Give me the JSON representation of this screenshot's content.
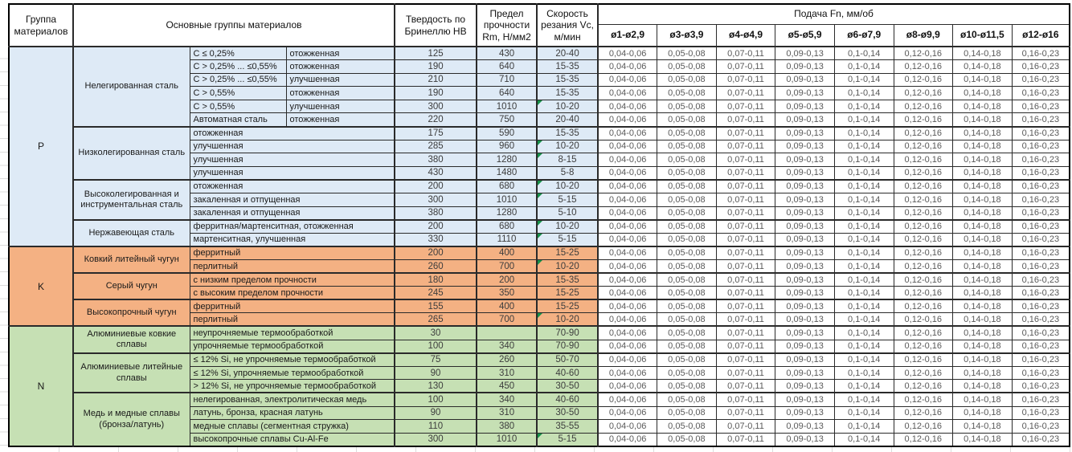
{
  "colors": {
    "group_p": "#DEEAF6",
    "group_k": "#F4B183",
    "group_n": "#C6E0B4",
    "flag_green": "#169149"
  },
  "table": {
    "headers": {
      "group": "Группа материалов",
      "main_groups": "Основные группы материалов",
      "hardness": "Твердость по Бринеллю HB",
      "strength": "Предел прочности Rm, Н/мм2",
      "speed": "Скорость резания Vc, м/мин",
      "feed": "Подача Fn, мм/об",
      "diameters": [
        "ø1-ø2,9",
        "ø3-ø3,9",
        "ø4-ø4,9",
        "ø5-ø5,9",
        "ø6-ø7,9",
        "ø8-ø9,9",
        "ø10-ø11,5",
        "ø12-ø16"
      ]
    },
    "feed_values": [
      "0,04-0,06",
      "0,05-0,08",
      "0,07-0,11",
      "0,09-0,13",
      "0,1-0,14",
      "0,12-0,16",
      "0,14-0,18",
      "0,16-0,23"
    ],
    "groups": [
      {
        "code": "P",
        "color": "#DEEAF6",
        "subgroups": [
          {
            "name": "Нелегированная сталь",
            "rows": [
              {
                "c1": "C ≤ 0,25%",
                "c2": "отожженная",
                "hb": "125",
                "rm": "430",
                "vc": "20-40"
              },
              {
                "c1": "C > 0,25% ... ≤0,55%",
                "c2": "отожженная",
                "hb": "190",
                "rm": "640",
                "vc": "15-35"
              },
              {
                "c1": "C > 0,25% ... ≤0,55%",
                "c2": "улучшенная",
                "hb": "210",
                "rm": "710",
                "vc": "15-35"
              },
              {
                "c1": "C > 0,55%",
                "c2": "отожженная",
                "hb": "190",
                "rm": "640",
                "vc": "15-35"
              },
              {
                "c1": "C > 0,55%",
                "c2": "улучшенная",
                "hb": "300",
                "rm": "1010",
                "vc": "10-20",
                "flag": true
              },
              {
                "c1": "Автоматная сталь",
                "c2": "отожженная",
                "hb": "220",
                "rm": "750",
                "vc": "20-40"
              }
            ]
          },
          {
            "name": "Низколегированная сталь",
            "rows": [
              {
                "desc": "отожженная",
                "hb": "175",
                "rm": "590",
                "vc": "15-35"
              },
              {
                "desc": "улучшенная",
                "hb": "285",
                "rm": "960",
                "vc": "10-20",
                "flag": true
              },
              {
                "desc": "улучшенная",
                "hb": "380",
                "rm": "1280",
                "vc": "8-15",
                "flag": true
              },
              {
                "desc": "улучшенная",
                "hb": "430",
                "rm": "1480",
                "vc": "5-8"
              }
            ]
          },
          {
            "name": "Высоколегированная и инструментальная сталь",
            "rows": [
              {
                "desc": "отожженная",
                "hb": "200",
                "rm": "680",
                "vc": "10-20",
                "flag": true
              },
              {
                "desc": "закаленная и отпущенная",
                "hb": "300",
                "rm": "1010",
                "vc": "5-15",
                "flag": true
              },
              {
                "desc": "закаленная и отпущенная",
                "hb": "380",
                "rm": "1280",
                "vc": "5-10"
              }
            ]
          },
          {
            "name": "Нержавеющая сталь",
            "rows": [
              {
                "desc": "ферритная/мартенситная, отожженная",
                "hb": "200",
                "rm": "680",
                "vc": "10-20",
                "flag": true
              },
              {
                "desc": "мартенситная, улучшенная",
                "hb": "330",
                "rm": "1110",
                "vc": "5-15",
                "flag": true
              }
            ]
          }
        ]
      },
      {
        "code": "K",
        "color": "#F4B183",
        "subgroups": [
          {
            "name": "Ковкий литейный чугун",
            "rows": [
              {
                "desc": "ферритный",
                "hb": "200",
                "rm": "400",
                "vc": "15-25"
              },
              {
                "desc": "перлитный",
                "hb": "260",
                "rm": "700",
                "vc": "10-20",
                "flag": true
              }
            ]
          },
          {
            "name": "Серый чугун",
            "rows": [
              {
                "desc": "с низким пределом прочности",
                "hb": "180",
                "rm": "200",
                "vc": "15-35"
              },
              {
                "desc": "с высоким пределом прочности",
                "hb": "245",
                "rm": "350",
                "vc": "15-25"
              }
            ]
          },
          {
            "name": "Высокопрочный чугун",
            "rows": [
              {
                "desc": "ферритный",
                "hb": "155",
                "rm": "400",
                "vc": "15-25"
              },
              {
                "desc": "перлитный",
                "hb": "265",
                "rm": "700",
                "vc": "10-20",
                "flag": true
              }
            ]
          }
        ]
      },
      {
        "code": "N",
        "color": "#C6E0B4",
        "subgroups": [
          {
            "name": "Алюминиевые ковкие сплавы",
            "rows": [
              {
                "desc": "неупрочняемые термообработкой",
                "hb": "30",
                "rm": "",
                "vc": "70-90"
              },
              {
                "desc": "упрочняемые термообработкой",
                "hb": "100",
                "rm": "340",
                "vc": "70-90"
              }
            ]
          },
          {
            "name": "Алюминиевые литейные сплавы",
            "rows": [
              {
                "desc": "≤ 12% Si, не упрочняемые термообработкой",
                "hb": "75",
                "rm": "260",
                "vc": "50-70"
              },
              {
                "desc": "≤ 12% Si, упрочняемые термообработкой",
                "hb": "90",
                "rm": "310",
                "vc": "40-60"
              },
              {
                "desc": "> 12% Si, не упрочняемые термообработкой",
                "hb": "130",
                "rm": "450",
                "vc": "30-50"
              }
            ]
          },
          {
            "name": "Медь и медные сплавы (бронза/латунь)",
            "rows": [
              {
                "desc": "нелегированная, электролитическая медь",
                "hb": "100",
                "rm": "340",
                "vc": "40-60"
              },
              {
                "desc": "латунь, бронза, красная латунь",
                "hb": "90",
                "rm": "310",
                "vc": "30-50"
              },
              {
                "desc": "медные сплавы (сегментная стружка)",
                "hb": "110",
                "rm": "380",
                "vc": "35-55"
              },
              {
                "desc": "высокопрочные сплавы Cu-Al-Fe",
                "hb": "300",
                "rm": "1010",
                "vc": "5-15",
                "flag": true
              }
            ]
          }
        ]
      }
    ]
  }
}
